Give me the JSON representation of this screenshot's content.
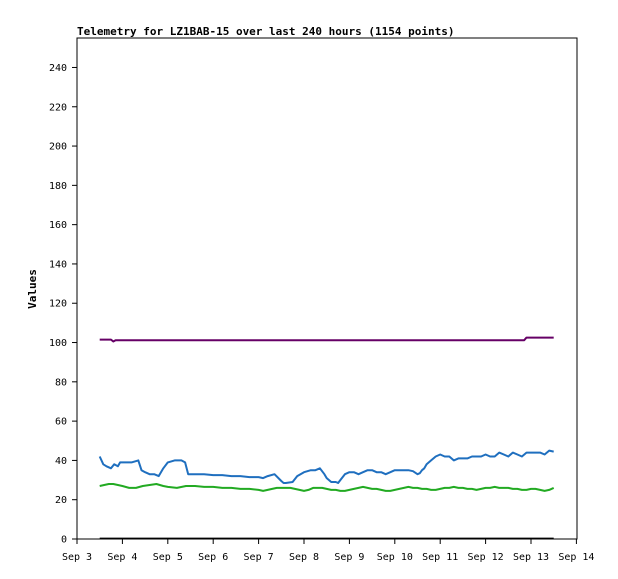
{
  "chart_data": {
    "type": "line",
    "title": "Telemetry for LZ1BAB-15 over last 240 hours (1154 points)",
    "xlabel": "",
    "ylabel": "Values",
    "xlim": [
      "Sep 3",
      "Sep 14"
    ],
    "ylim": [
      0,
      250
    ],
    "x_ticks": [
      "Sep 3",
      "Sep 4",
      "Sep 5",
      "Sep 6",
      "Sep 7",
      "Sep 8",
      "Sep 9",
      "Sep 10",
      "Sep 11",
      "Sep 12",
      "Sep 13",
      "Sep 14"
    ],
    "y_ticks": [
      0,
      20,
      40,
      60,
      80,
      100,
      120,
      140,
      160,
      180,
      200,
      220,
      240
    ],
    "grid": false,
    "colors": [
      "#660066",
      "#1f6fbf",
      "#22aa22",
      "#000000"
    ],
    "series": [
      {
        "x": [
          3.5,
          3.75,
          3.8,
          3.85,
          4.5,
          5.5,
          6.5,
          7.5,
          8.5,
          9.5,
          10.5,
          11.5,
          12.5,
          12.85,
          12.9,
          13.5
        ],
        "values": [
          101.5,
          101.5,
          100.5,
          101.2,
          101.2,
          101.2,
          101.2,
          101.2,
          101.2,
          101.2,
          101.2,
          101.2,
          101.2,
          101.2,
          102.5,
          102.5
        ]
      },
      {
        "x": [
          3.5,
          3.58,
          3.65,
          3.75,
          3.82,
          3.9,
          3.95,
          4.05,
          4.2,
          4.35,
          4.42,
          4.5,
          4.6,
          4.7,
          4.8,
          4.9,
          5.0,
          5.15,
          5.3,
          5.38,
          5.45,
          5.6,
          5.8,
          6.0,
          6.2,
          6.4,
          6.6,
          6.8,
          7.0,
          7.1,
          7.2,
          7.35,
          7.5,
          7.55,
          7.6,
          7.75,
          7.85,
          8.0,
          8.15,
          8.25,
          8.35,
          8.45,
          8.5,
          8.6,
          8.7,
          8.75,
          8.8,
          8.9,
          9.0,
          9.1,
          9.2,
          9.3,
          9.4,
          9.5,
          9.6,
          9.7,
          9.8,
          9.9,
          10.0,
          10.1,
          10.2,
          10.3,
          10.4,
          10.5,
          10.55,
          10.6,
          10.65,
          10.7,
          10.8,
          10.9,
          11.0,
          11.1,
          11.2,
          11.3,
          11.4,
          11.5,
          11.6,
          11.7,
          11.8,
          11.9,
          12.0,
          12.1,
          12.2,
          12.3,
          12.4,
          12.5,
          12.6,
          12.7,
          12.8,
          12.9,
          13.0,
          13.1,
          13.2,
          13.3,
          13.4,
          13.5
        ],
        "values": [
          42,
          38,
          37,
          36,
          38,
          37,
          39,
          39,
          39,
          40,
          35,
          34,
          33,
          33,
          32,
          36,
          39,
          40,
          40,
          39,
          33,
          33,
          33,
          32.5,
          32.5,
          32,
          32,
          31.5,
          31.5,
          31,
          32,
          33,
          29.5,
          28.5,
          28.5,
          29,
          32,
          34,
          35,
          35,
          36,
          33,
          31,
          29,
          29,
          28.5,
          30,
          33,
          34,
          34,
          33,
          34,
          35,
          35,
          34,
          34,
          33,
          34,
          35,
          35,
          35,
          35,
          34.5,
          33,
          33.5,
          35,
          36,
          38,
          40,
          42,
          43,
          42,
          42,
          40,
          41,
          41,
          41,
          42,
          42,
          42,
          43,
          42,
          42,
          44,
          43,
          42,
          44,
          43,
          42,
          44,
          44,
          44,
          44,
          43,
          45,
          44.5
        ]
      },
      {
        "x": [
          3.5,
          3.6,
          3.7,
          3.8,
          3.9,
          4.0,
          4.15,
          4.3,
          4.45,
          4.6,
          4.75,
          4.9,
          5.0,
          5.2,
          5.4,
          5.6,
          5.8,
          6.0,
          6.2,
          6.4,
          6.6,
          6.8,
          7.0,
          7.1,
          7.2,
          7.3,
          7.4,
          7.5,
          7.6,
          7.7,
          7.8,
          7.9,
          8.0,
          8.1,
          8.2,
          8.3,
          8.4,
          8.5,
          8.6,
          8.7,
          8.8,
          8.9,
          9.0,
          9.1,
          9.2,
          9.3,
          9.4,
          9.5,
          9.6,
          9.7,
          9.8,
          9.9,
          10.0,
          10.1,
          10.2,
          10.3,
          10.4,
          10.5,
          10.6,
          10.7,
          10.8,
          10.9,
          11.0,
          11.1,
          11.2,
          11.3,
          11.4,
          11.5,
          11.6,
          11.7,
          11.8,
          11.9,
          12.0,
          12.1,
          12.2,
          12.3,
          12.4,
          12.5,
          12.6,
          12.7,
          12.8,
          12.9,
          13.0,
          13.1,
          13.2,
          13.3,
          13.4,
          13.5
        ],
        "values": [
          27,
          27.5,
          28,
          28,
          27.5,
          27,
          26,
          26,
          27,
          27.5,
          28,
          27,
          26.5,
          26,
          27,
          27,
          26.5,
          26.5,
          26,
          26,
          25.5,
          25.5,
          25,
          24.5,
          25,
          25.5,
          26,
          26,
          26,
          26,
          25.5,
          25,
          24.5,
          25,
          26,
          26,
          26,
          25.5,
          25,
          25,
          24.5,
          24.5,
          25,
          25.5,
          26,
          26.5,
          26,
          25.5,
          25.5,
          25,
          24.5,
          24.5,
          25,
          25.5,
          26,
          26.5,
          26,
          26,
          25.5,
          25.5,
          25,
          25,
          25.5,
          26,
          26,
          26.5,
          26,
          26,
          25.5,
          25.5,
          25,
          25.5,
          26,
          26,
          26.5,
          26,
          26,
          26,
          25.5,
          25.5,
          25,
          25,
          25.5,
          25.5,
          25,
          24.5,
          25,
          26
        ]
      },
      {
        "x": [
          3.5,
          13.5
        ],
        "values": [
          0.3,
          0.3
        ]
      }
    ]
  }
}
